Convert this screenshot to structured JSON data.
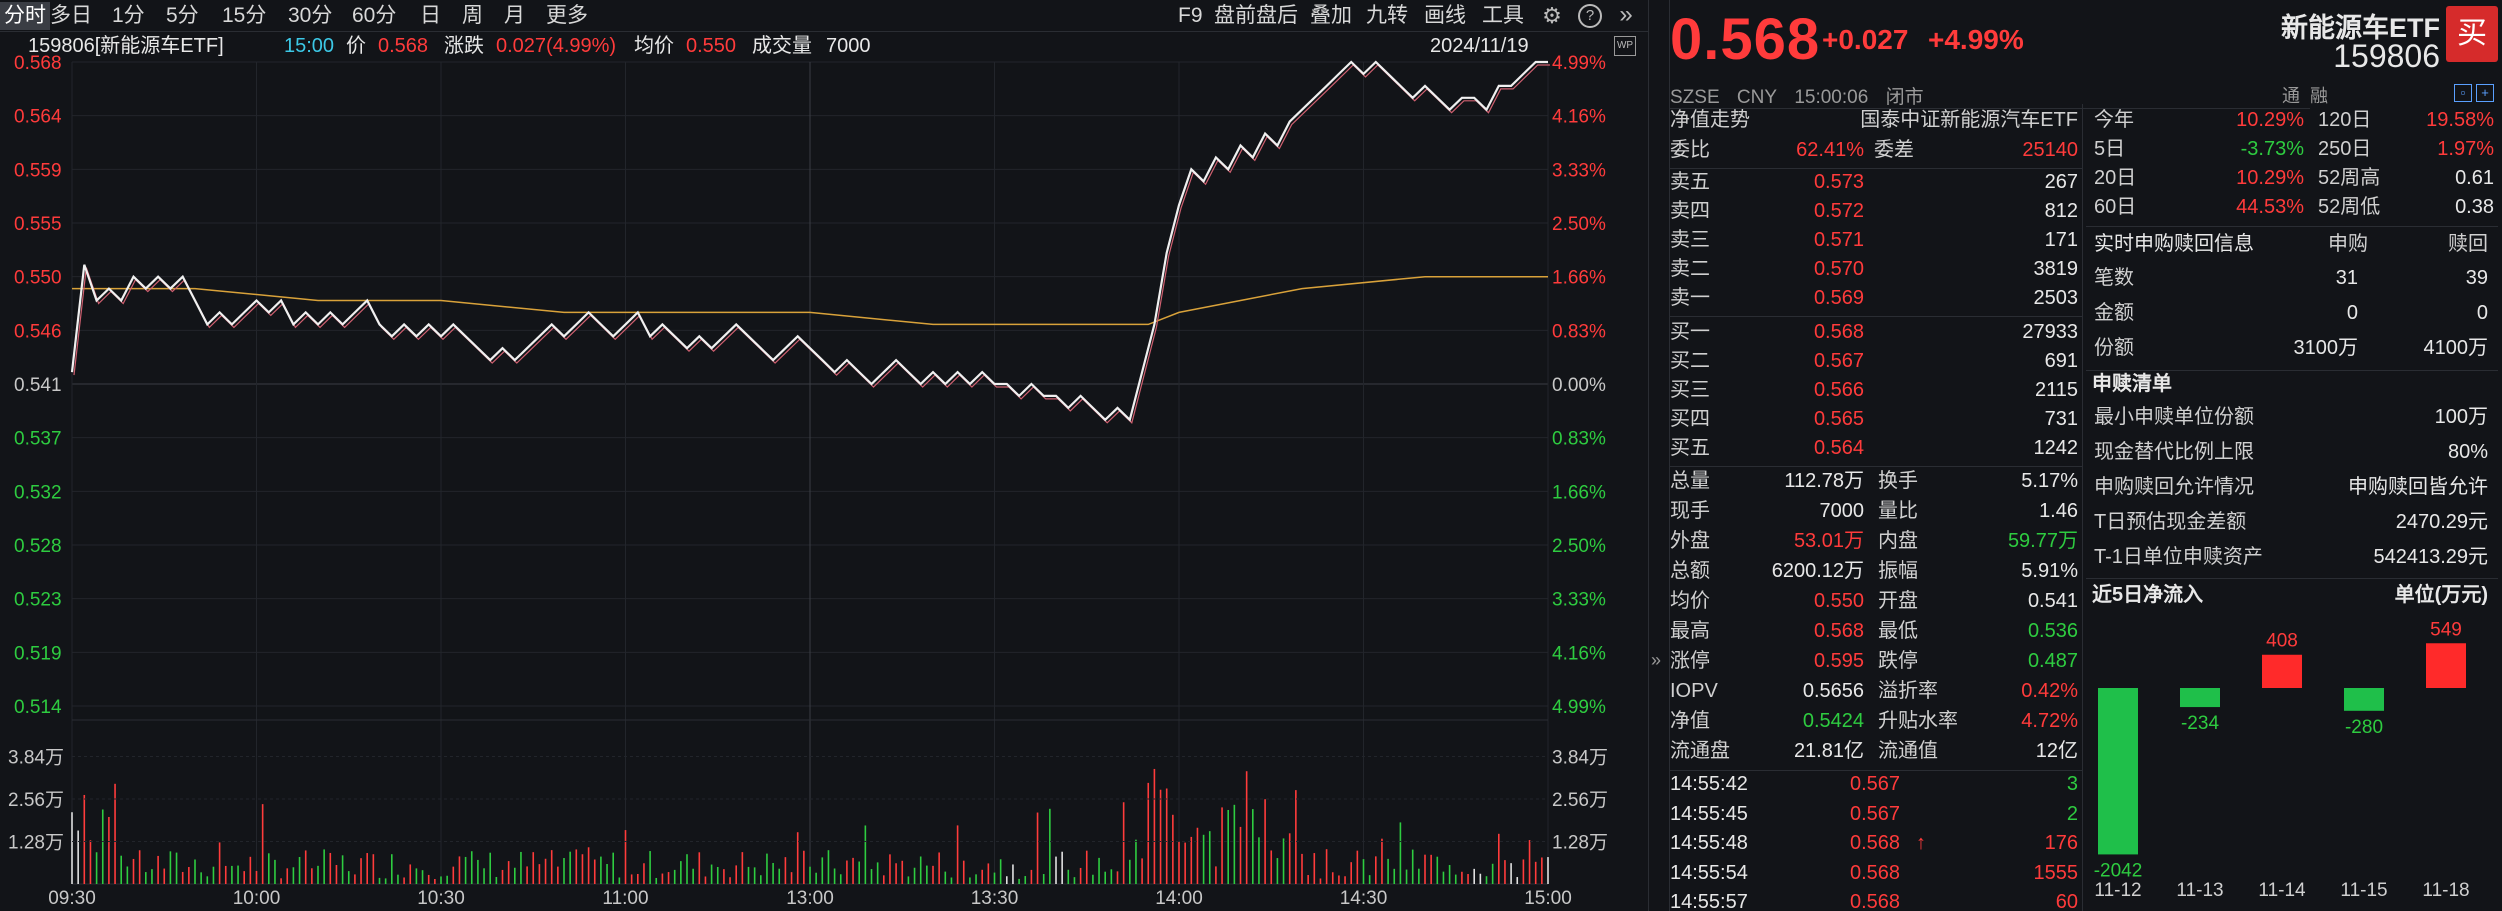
{
  "toolbar": {
    "tabs": [
      "分时",
      "多日",
      "1分",
      "5分",
      "15分",
      "30分",
      "60分",
      "日",
      "周",
      "月",
      "更多"
    ],
    "right_items": [
      "F9",
      "盘前盘后",
      "叠加",
      "九转",
      "画线",
      "工具"
    ]
  },
  "info": {
    "code_name": "159806[新能源车ETF]",
    "time": "15:00",
    "price_label": "价",
    "price": "0.568",
    "change_label": "涨跌",
    "change": "0.027(4.99%)",
    "avg_label": "均价",
    "avg": "0.550",
    "volume_label": "成交量",
    "volume": "7000",
    "date": "2024/11/19"
  },
  "chart_data": {
    "type": "line",
    "title": "",
    "y_left_ticks": [
      "0.568",
      "0.564",
      "0.559",
      "0.555",
      "0.550",
      "0.546",
      "0.541",
      "0.537",
      "0.532",
      "0.528",
      "0.523",
      "0.519",
      "0.514"
    ],
    "y_right_ticks": [
      "4.99%",
      "4.16%",
      "3.33%",
      "2.50%",
      "1.66%",
      "0.83%",
      "0.00%",
      "0.83%",
      "1.66%",
      "2.50%",
      "3.33%",
      "4.16%",
      "4.99%"
    ],
    "ylim": [
      0.514,
      0.568
    ],
    "prev_close": 0.541,
    "x_ticks": [
      "09:30",
      "10:00",
      "10:30",
      "11:00",
      "13:00",
      "13:30",
      "14:00",
      "14:30",
      "15:00"
    ],
    "volume_ticks": [
      "3.84万",
      "2.56万",
      "1.28万"
    ],
    "volume_ylim": [
      0,
      5.12
    ],
    "price_series": {
      "x": [
        0,
        2,
        4,
        6,
        8,
        10,
        12,
        14,
        16,
        18,
        20,
        22,
        24,
        26,
        28,
        30,
        32,
        34,
        36,
        38,
        40,
        42,
        44,
        46,
        48,
        50,
        52,
        54,
        56,
        58,
        60,
        62,
        64,
        66,
        68,
        70,
        72,
        74,
        76,
        78,
        80,
        82,
        84,
        86,
        88,
        90,
        92,
        94,
        96,
        98,
        100,
        102,
        104,
        106,
        108,
        110,
        112,
        114,
        116,
        118,
        120,
        122,
        124,
        126,
        128,
        130,
        132,
        134,
        136,
        138,
        140,
        142,
        144,
        146,
        148,
        150,
        152,
        154,
        156,
        158,
        160,
        162,
        164,
        166,
        168,
        170,
        172,
        174,
        176,
        178,
        180,
        182,
        184,
        186,
        188,
        190,
        192,
        194,
        196,
        198,
        200,
        202,
        204,
        206,
        208,
        210,
        212,
        214,
        216,
        218,
        220,
        222,
        224,
        226,
        228,
        230,
        232,
        234,
        236,
        238,
        240
      ],
      "values": [
        0.542,
        0.551,
        0.548,
        0.549,
        0.548,
        0.55,
        0.549,
        0.55,
        0.549,
        0.55,
        0.548,
        0.546,
        0.547,
        0.546,
        0.547,
        0.548,
        0.547,
        0.548,
        0.546,
        0.547,
        0.546,
        0.547,
        0.546,
        0.547,
        0.548,
        0.546,
        0.545,
        0.546,
        0.545,
        0.546,
        0.545,
        0.546,
        0.545,
        0.544,
        0.543,
        0.544,
        0.543,
        0.544,
        0.545,
        0.546,
        0.545,
        0.546,
        0.547,
        0.546,
        0.545,
        0.546,
        0.547,
        0.545,
        0.546,
        0.545,
        0.544,
        0.545,
        0.544,
        0.545,
        0.546,
        0.545,
        0.544,
        0.543,
        0.544,
        0.545,
        0.544,
        0.543,
        0.542,
        0.543,
        0.542,
        0.541,
        0.542,
        0.543,
        0.542,
        0.541,
        0.542,
        0.541,
        0.542,
        0.541,
        0.542,
        0.541,
        0.541,
        0.54,
        0.541,
        0.54,
        0.54,
        0.539,
        0.54,
        0.539,
        0.538,
        0.539,
        0.538,
        0.542,
        0.546,
        0.552,
        0.556,
        0.559,
        0.558,
        0.56,
        0.559,
        0.561,
        0.56,
        0.562,
        0.561,
        0.563,
        0.564,
        0.565,
        0.566,
        0.567,
        0.568,
        0.567,
        0.568,
        0.567,
        0.566,
        0.565,
        0.566,
        0.565,
        0.564,
        0.565,
        0.565,
        0.564,
        0.566,
        0.566,
        0.567,
        0.568,
        0.568
      ]
    },
    "avg_series": {
      "x": [
        0,
        20,
        40,
        60,
        80,
        100,
        120,
        140,
        160,
        170,
        175,
        180,
        190,
        200,
        220,
        240
      ],
      "values": [
        0.549,
        0.549,
        0.548,
        0.548,
        0.547,
        0.547,
        0.547,
        0.546,
        0.546,
        0.546,
        0.546,
        0.547,
        0.548,
        0.549,
        0.55,
        0.55
      ]
    }
  },
  "right": {
    "price": "0.568",
    "change_abs": "+0.027",
    "change_pct": "+4.99%",
    "name": "新能源车ETF",
    "code": "159806",
    "buy_label": "买",
    "meta": [
      "SZSE",
      "CNY",
      "15:00:06",
      "闭市"
    ],
    "nav_trend_label": "净值走势",
    "index_name": "国泰中证新能源汽车ETF",
    "weibi_label": "委比",
    "weibi": "62.41%",
    "weicha_label": "委差",
    "weicha": "25140",
    "sells": [
      {
        "label": "卖五",
        "price": "0.573",
        "vol": "267"
      },
      {
        "label": "卖四",
        "price": "0.572",
        "vol": "812"
      },
      {
        "label": "卖三",
        "price": "0.571",
        "vol": "171"
      },
      {
        "label": "卖二",
        "price": "0.570",
        "vol": "3819"
      },
      {
        "label": "卖一",
        "price": "0.569",
        "vol": "2503"
      }
    ],
    "buys": [
      {
        "label": "买一",
        "price": "0.568",
        "vol": "27933"
      },
      {
        "label": "买二",
        "price": "0.567",
        "vol": "691"
      },
      {
        "label": "买三",
        "price": "0.566",
        "vol": "2115"
      },
      {
        "label": "买四",
        "price": "0.565",
        "vol": "731"
      },
      {
        "label": "买五",
        "price": "0.564",
        "vol": "1242"
      }
    ],
    "stats": [
      {
        "l1": "总量",
        "v1": "112.78万",
        "c1": "white",
        "l2": "换手",
        "v2": "5.17%",
        "c2": "white"
      },
      {
        "l1": "现手",
        "v1": "7000",
        "c1": "white",
        "l2": "量比",
        "v2": "1.46",
        "c2": "white"
      },
      {
        "l1": "外盘",
        "v1": "53.01万",
        "c1": "red",
        "l2": "内盘",
        "v2": "59.77万",
        "c2": "green"
      },
      {
        "l1": "总额",
        "v1": "6200.12万",
        "c1": "white",
        "l2": "振幅",
        "v2": "5.91%",
        "c2": "white"
      },
      {
        "l1": "均价",
        "v1": "0.550",
        "c1": "red",
        "l2": "开盘",
        "v2": "0.541",
        "c2": "white"
      },
      {
        "l1": "最高",
        "v1": "0.568",
        "c1": "red",
        "l2": "最低",
        "v2": "0.536",
        "c2": "green"
      },
      {
        "l1": "涨停",
        "v1": "0.595",
        "c1": "red",
        "l2": "跌停",
        "v2": "0.487",
        "c2": "green"
      },
      {
        "l1": "IOPV",
        "v1": "0.5656",
        "c1": "white",
        "l2": "溢折率",
        "v2": "0.42%",
        "c2": "red"
      },
      {
        "l1": "净值",
        "v1": "0.5424",
        "c1": "green",
        "l2": "升贴水率",
        "v2": "4.72%",
        "c2": "red"
      },
      {
        "l1": "流通盘",
        "v1": "21.81亿",
        "c1": "white",
        "l2": "流通值",
        "v2": "12亿",
        "c2": "white"
      }
    ],
    "ticks": [
      {
        "time": "14:55:42",
        "price": "0.567",
        "vol": "3",
        "vc": "green",
        "arrow": ""
      },
      {
        "time": "14:55:45",
        "price": "0.567",
        "vol": "2",
        "vc": "green",
        "arrow": ""
      },
      {
        "time": "14:55:48",
        "price": "0.568",
        "vol": "176",
        "vc": "red",
        "arrow": "↑"
      },
      {
        "time": "14:55:54",
        "price": "0.568",
        "vol": "1555",
        "vc": "red",
        "arrow": ""
      },
      {
        "time": "14:55:57",
        "price": "0.568",
        "vol": "60",
        "vc": "red",
        "arrow": ""
      }
    ],
    "tabs_small": [
      "通",
      "融"
    ],
    "perf": [
      {
        "l1": "今年",
        "v1": "10.29%",
        "c1": "red",
        "l2": "120日",
        "v2": "19.58%",
        "c2": "red"
      },
      {
        "l1": "5日",
        "v1": "-3.73%",
        "c1": "green",
        "l2": "250日",
        "v2": "1.97%",
        "c2": "red"
      },
      {
        "l1": "20日",
        "v1": "10.29%",
        "c1": "red",
        "l2": "52周高",
        "v2": "0.61",
        "c2": "white"
      },
      {
        "l1": "60日",
        "v1": "44.53%",
        "c1": "red",
        "l2": "52周低",
        "v2": "0.38",
        "c2": "white"
      }
    ],
    "redeem_title": "实时申购赎回信息",
    "redeem_cols": [
      "申购",
      "赎回"
    ],
    "redeem_rows": [
      {
        "label": "笔数",
        "a": "31",
        "b": "39"
      },
      {
        "label": "金额",
        "a": "0",
        "b": "0"
      },
      {
        "label": "份额",
        "a": "3100万",
        "b": "4100万"
      }
    ],
    "list_title": "申赎清单",
    "list_rows": [
      {
        "label": "最小申赎单位份额",
        "value": "100万"
      },
      {
        "label": "现金替代比例上限",
        "value": "80%"
      },
      {
        "label": "申购赎回允许情况",
        "value": "申购赎回皆允许"
      },
      {
        "label": "T日预估现金差额",
        "value": "2470.29元"
      },
      {
        "label": "T-1日单位申赎资产",
        "value": "542413.29元"
      }
    ],
    "flow_title": "近5日净流入",
    "flow_unit": "单位(万元)",
    "flow_chart": {
      "type": "bar",
      "categories": [
        "11-12",
        "11-13",
        "11-14",
        "11-15",
        "11-18"
      ],
      "values": [
        -2042,
        -234,
        408,
        -280,
        549
      ],
      "labels": [
        "-2042",
        "-234",
        "408",
        "-280",
        "549"
      ]
    },
    "colors": {
      "up": "#ff3b3b",
      "down": "#2ecc40",
      "bar_up": "#ff2a2a",
      "bar_down": "#1fbf4a"
    }
  }
}
